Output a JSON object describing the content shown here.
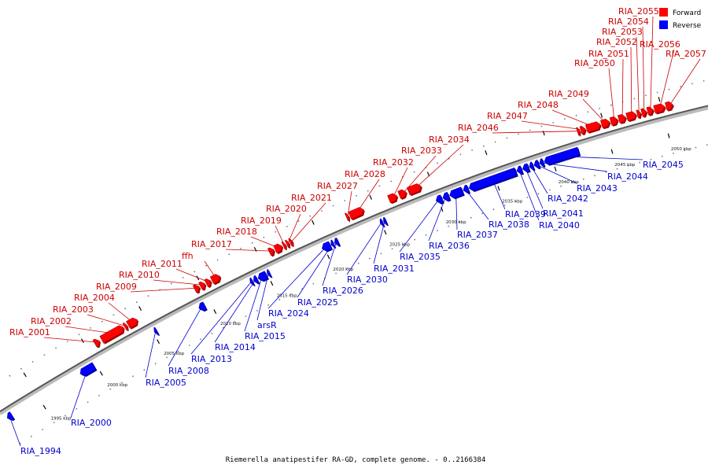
{
  "caption": "Riemerella anatipestifer RA-GD, complete genome. - 0..2166384",
  "legend": {
    "forward_label": "Forward",
    "reverse_label": "Reverse"
  },
  "colors": {
    "forward": "#ff0000",
    "forward_text": "#cc0000",
    "reverse": "#0000ff",
    "reverse_text": "#0000cc",
    "axis": "#555555"
  },
  "axis": {
    "start_kbp": 1992,
    "end_kbp": 2054,
    "ticks": [
      {
        "kbp": 1995,
        "label": "1995 kbp"
      },
      {
        "kbp": 2000,
        "label": "2000 kbp"
      },
      {
        "kbp": 2005,
        "label": "2005 kbp"
      },
      {
        "kbp": 2010,
        "label": "2010 kbp"
      },
      {
        "kbp": 2015,
        "label": "2015 kbp"
      },
      {
        "kbp": 2020,
        "label": "2020 kbp"
      },
      {
        "kbp": 2025,
        "label": "2025 kbp"
      },
      {
        "kbp": 2030,
        "label": "2030 kbp"
      },
      {
        "kbp": 2035,
        "label": "2035 kbp"
      },
      {
        "kbp": 2040,
        "label": "2040 kbp"
      },
      {
        "kbp": 2045,
        "label": "2045 kbp"
      },
      {
        "kbp": 2050,
        "label": "2050 kbp"
      }
    ]
  },
  "genes": [
    {
      "name": "RIA_1994",
      "strand": "reverse",
      "start_kbp": 1992.2,
      "end_kbp": 1992.6
    },
    {
      "name": "RIA_2000",
      "strand": "reverse",
      "start_kbp": 1998.6,
      "end_kbp": 1999.8
    },
    {
      "name": "RIA_2001",
      "strand": "forward",
      "start_kbp": 2000.7,
      "end_kbp": 2001.1
    },
    {
      "name": "RIA_2002",
      "strand": "forward",
      "start_kbp": 2001.3,
      "end_kbp": 2003.2
    },
    {
      "name": "RIA_2003",
      "strand": "forward",
      "start_kbp": 2003.3,
      "end_kbp": 2003.5
    },
    {
      "name": "RIA_2004",
      "strand": "forward",
      "start_kbp": 2003.6,
      "end_kbp": 2004.4
    },
    {
      "name": "RIA_2005",
      "strand": "reverse",
      "start_kbp": 2005.1,
      "end_kbp": 2005.3
    },
    {
      "name": "RIA_2008",
      "strand": "reverse",
      "start_kbp": 2009.0,
      "end_kbp": 2009.5
    },
    {
      "name": "RIA_2009",
      "strand": "forward",
      "start_kbp": 2009.4,
      "end_kbp": 2009.8
    },
    {
      "name": "RIA_2010",
      "strand": "forward",
      "start_kbp": 2009.9,
      "end_kbp": 2010.3
    },
    {
      "name": "RIA_2011",
      "strand": "forward",
      "start_kbp": 2010.4,
      "end_kbp": 2010.8
    },
    {
      "name": "ffh",
      "strand": "forward",
      "start_kbp": 2010.9,
      "end_kbp": 2011.6
    },
    {
      "name": "RIA_2013",
      "strand": "reverse",
      "start_kbp": 2013.5,
      "end_kbp": 2013.7
    },
    {
      "name": "RIA_2014",
      "strand": "reverse",
      "start_kbp": 2013.8,
      "end_kbp": 2014.1
    },
    {
      "name": "RIA_2015",
      "strand": "reverse",
      "start_kbp": 2014.2,
      "end_kbp": 2014.9
    },
    {
      "name": "arsR",
      "strand": "reverse",
      "start_kbp": 2015.0,
      "end_kbp": 2015.2
    },
    {
      "name": "RIA_2017",
      "strand": "forward",
      "start_kbp": 2015.9,
      "end_kbp": 2016.3
    },
    {
      "name": "RIA_2018",
      "strand": "forward",
      "start_kbp": 2016.4,
      "end_kbp": 2017.0
    },
    {
      "name": "RIA_2019",
      "strand": "forward",
      "start_kbp": 2017.1,
      "end_kbp": 2017.3
    },
    {
      "name": "RIA_2020",
      "strand": "forward",
      "start_kbp": 2017.4,
      "end_kbp": 2017.6
    },
    {
      "name": "RIA_2021",
      "strand": "forward",
      "start_kbp": 2017.7,
      "end_kbp": 2017.9
    },
    {
      "name": "RIA_2024",
      "strand": "reverse",
      "start_kbp": 2019.8,
      "end_kbp": 2020.5
    },
    {
      "name": "RIA_2025",
      "strand": "reverse",
      "start_kbp": 2020.6,
      "end_kbp": 2020.8
    },
    {
      "name": "RIA_2026",
      "strand": "reverse",
      "start_kbp": 2020.9,
      "end_kbp": 2021.2
    },
    {
      "name": "RIA_2027",
      "strand": "forward",
      "start_kbp": 2022.6,
      "end_kbp": 2022.8
    },
    {
      "name": "RIA_2028",
      "strand": "forward",
      "start_kbp": 2022.9,
      "end_kbp": 2024.1
    },
    {
      "name": "RIA_2030",
      "strand": "reverse",
      "start_kbp": 2024.9,
      "end_kbp": 2025.1
    },
    {
      "name": "RIA_2031",
      "strand": "reverse",
      "start_kbp": 2025.2,
      "end_kbp": 2025.4
    },
    {
      "name": "RIA_2032",
      "strand": "forward",
      "start_kbp": 2026.3,
      "end_kbp": 2027.0
    },
    {
      "name": "RIA_2033",
      "strand": "forward",
      "start_kbp": 2027.2,
      "end_kbp": 2027.8
    },
    {
      "name": "RIA_2034",
      "strand": "forward",
      "start_kbp": 2028.0,
      "end_kbp": 2029.1
    },
    {
      "name": "RIA_2035",
      "strand": "reverse",
      "start_kbp": 2029.8,
      "end_kbp": 2030.3
    },
    {
      "name": "RIA_2036",
      "strand": "reverse",
      "start_kbp": 2030.4,
      "end_kbp": 2030.9
    },
    {
      "name": "RIA_2037",
      "strand": "reverse",
      "start_kbp": 2031.0,
      "end_kbp": 2032.1
    },
    {
      "name": "RIA_2038",
      "strand": "reverse",
      "start_kbp": 2032.2,
      "end_kbp": 2032.6
    },
    {
      "name": "RIA_2039",
      "strand": "reverse",
      "start_kbp": 2032.7,
      "end_kbp": 2036.8
    },
    {
      "name": "RIA_2040",
      "strand": "reverse",
      "start_kbp": 2036.9,
      "end_kbp": 2037.3
    },
    {
      "name": "RIA_2041",
      "strand": "reverse",
      "start_kbp": 2037.4,
      "end_kbp": 2037.9
    },
    {
      "name": "RIA_2042",
      "strand": "reverse",
      "start_kbp": 2038.0,
      "end_kbp": 2038.3
    },
    {
      "name": "RIA_2043",
      "strand": "reverse",
      "start_kbp": 2038.4,
      "end_kbp": 2038.8
    },
    {
      "name": "RIA_2044",
      "strand": "reverse",
      "start_kbp": 2038.9,
      "end_kbp": 2039.2
    },
    {
      "name": "RIA_2045",
      "strand": "reverse",
      "start_kbp": 2039.3,
      "end_kbp": 2042.3
    },
    {
      "name": "RIA_2046",
      "strand": "forward",
      "start_kbp": 2042.7,
      "end_kbp": 2042.9
    },
    {
      "name": "RIA_2047",
      "strand": "forward",
      "start_kbp": 2043.0,
      "end_kbp": 2043.4
    },
    {
      "name": "RIA_2048",
      "strand": "forward",
      "start_kbp": 2043.5,
      "end_kbp": 2044.7
    },
    {
      "name": "RIA_2049",
      "strand": "forward",
      "start_kbp": 2044.8,
      "end_kbp": 2045.5
    },
    {
      "name": "RIA_2050",
      "strand": "forward",
      "start_kbp": 2045.6,
      "end_kbp": 2046.2
    },
    {
      "name": "RIA_2051",
      "strand": "forward",
      "start_kbp": 2046.3,
      "end_kbp": 2046.9
    },
    {
      "name": "RIA_2052",
      "strand": "forward",
      "start_kbp": 2047.0,
      "end_kbp": 2047.8
    },
    {
      "name": "RIA_2053",
      "strand": "forward",
      "start_kbp": 2047.9,
      "end_kbp": 2048.2
    },
    {
      "name": "RIA_2054",
      "strand": "forward",
      "start_kbp": 2048.3,
      "end_kbp": 2048.7
    },
    {
      "name": "RIA_2055",
      "strand": "forward",
      "start_kbp": 2048.8,
      "end_kbp": 2049.3
    },
    {
      "name": "RIA_2056",
      "strand": "forward",
      "start_kbp": 2049.4,
      "end_kbp": 2050.3
    },
    {
      "name": "RIA_2057",
      "strand": "forward",
      "start_kbp": 2050.4,
      "end_kbp": 2051.0
    }
  ]
}
